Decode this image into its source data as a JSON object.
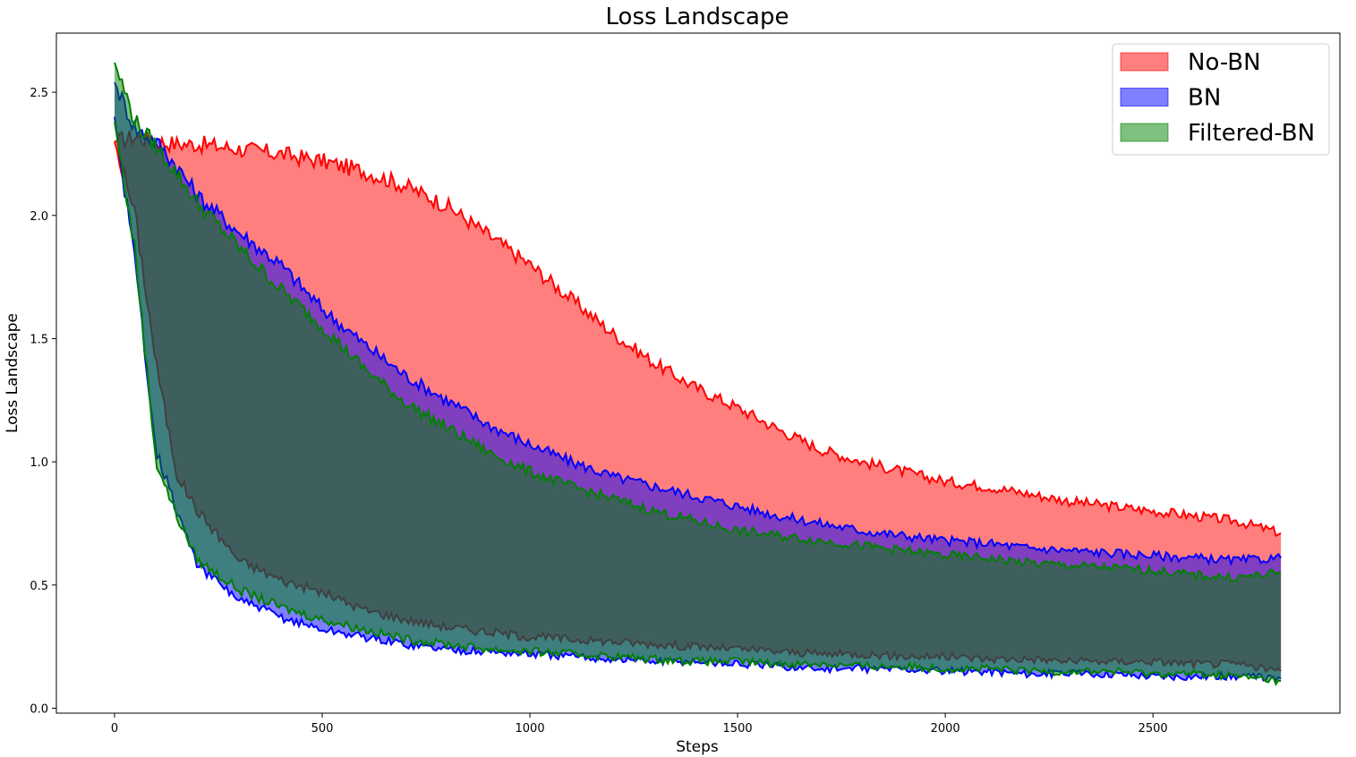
{
  "chart_data": {
    "type": "area",
    "title": "Loss Landscape",
    "xlabel": "Steps",
    "ylabel": "Loss Landscape",
    "xlim": [
      -140,
      2950
    ],
    "ylim": [
      -0.02,
      2.74
    ],
    "xticks": [
      0,
      500,
      1000,
      1500,
      2000,
      2500
    ],
    "yticks": [
      0.0,
      0.5,
      1.0,
      1.5,
      2.0,
      2.5
    ],
    "grid": false,
    "legend_position": "top-right",
    "series": [
      {
        "name": "No-BN",
        "color": "#ff0000",
        "fill_alpha": 0.5,
        "x": [
          0,
          50,
          100,
          150,
          200,
          300,
          400,
          500,
          600,
          700,
          800,
          900,
          1000,
          1100,
          1200,
          1300,
          1400,
          1500,
          1600,
          1700,
          1800,
          1900,
          2000,
          2100,
          2200,
          2300,
          2400,
          2500,
          2600,
          2700,
          2810
        ],
        "upper": [
          2.3,
          2.32,
          2.3,
          2.29,
          2.29,
          2.27,
          2.25,
          2.22,
          2.18,
          2.12,
          2.04,
          1.92,
          1.8,
          1.66,
          1.52,
          1.4,
          1.3,
          1.22,
          1.13,
          1.05,
          1.0,
          0.96,
          0.92,
          0.9,
          0.87,
          0.84,
          0.82,
          0.8,
          0.78,
          0.76,
          0.71
        ],
        "lower": [
          2.3,
          2.0,
          1.4,
          0.95,
          0.8,
          0.6,
          0.52,
          0.47,
          0.4,
          0.36,
          0.33,
          0.31,
          0.29,
          0.28,
          0.27,
          0.26,
          0.25,
          0.24,
          0.23,
          0.22,
          0.22,
          0.21,
          0.21,
          0.2,
          0.2,
          0.19,
          0.19,
          0.19,
          0.18,
          0.18,
          0.15
        ]
      },
      {
        "name": "BN",
        "color": "#0000ff",
        "fill_alpha": 0.5,
        "x": [
          0,
          50,
          100,
          150,
          200,
          300,
          400,
          500,
          600,
          700,
          800,
          900,
          1000,
          1100,
          1200,
          1300,
          1400,
          1500,
          1600,
          1700,
          1800,
          1900,
          2000,
          2100,
          2200,
          2300,
          2400,
          2500,
          2600,
          2700,
          2810
        ],
        "upper": [
          2.54,
          2.35,
          2.3,
          2.2,
          2.08,
          1.93,
          1.8,
          1.62,
          1.48,
          1.35,
          1.25,
          1.15,
          1.07,
          1.0,
          0.94,
          0.9,
          0.86,
          0.82,
          0.78,
          0.75,
          0.72,
          0.7,
          0.68,
          0.67,
          0.65,
          0.64,
          0.63,
          0.62,
          0.61,
          0.6,
          0.61
        ],
        "lower": [
          2.4,
          1.8,
          1.05,
          0.8,
          0.58,
          0.44,
          0.37,
          0.32,
          0.29,
          0.26,
          0.24,
          0.23,
          0.22,
          0.21,
          0.2,
          0.19,
          0.19,
          0.18,
          0.17,
          0.16,
          0.16,
          0.16,
          0.15,
          0.15,
          0.14,
          0.14,
          0.14,
          0.13,
          0.13,
          0.13,
          0.12
        ]
      },
      {
        "name": "Filtered-BN",
        "color": "#008000",
        "fill_alpha": 0.5,
        "x": [
          0,
          50,
          100,
          150,
          200,
          300,
          400,
          500,
          600,
          700,
          800,
          900,
          1000,
          1100,
          1200,
          1300,
          1400,
          1500,
          1600,
          1700,
          1800,
          1900,
          2000,
          2100,
          2200,
          2300,
          2400,
          2500,
          2600,
          2700,
          2810
        ],
        "upper": [
          2.62,
          2.38,
          2.28,
          2.17,
          2.05,
          1.87,
          1.7,
          1.55,
          1.38,
          1.24,
          1.14,
          1.04,
          0.96,
          0.9,
          0.85,
          0.8,
          0.76,
          0.72,
          0.7,
          0.68,
          0.66,
          0.64,
          0.62,
          0.61,
          0.59,
          0.58,
          0.57,
          0.56,
          0.54,
          0.53,
          0.55
        ],
        "lower": [
          2.38,
          1.85,
          1.0,
          0.78,
          0.6,
          0.48,
          0.41,
          0.36,
          0.32,
          0.28,
          0.26,
          0.24,
          0.23,
          0.22,
          0.21,
          0.2,
          0.19,
          0.19,
          0.18,
          0.18,
          0.17,
          0.17,
          0.16,
          0.16,
          0.15,
          0.15,
          0.15,
          0.14,
          0.14,
          0.13,
          0.11
        ]
      }
    ]
  }
}
